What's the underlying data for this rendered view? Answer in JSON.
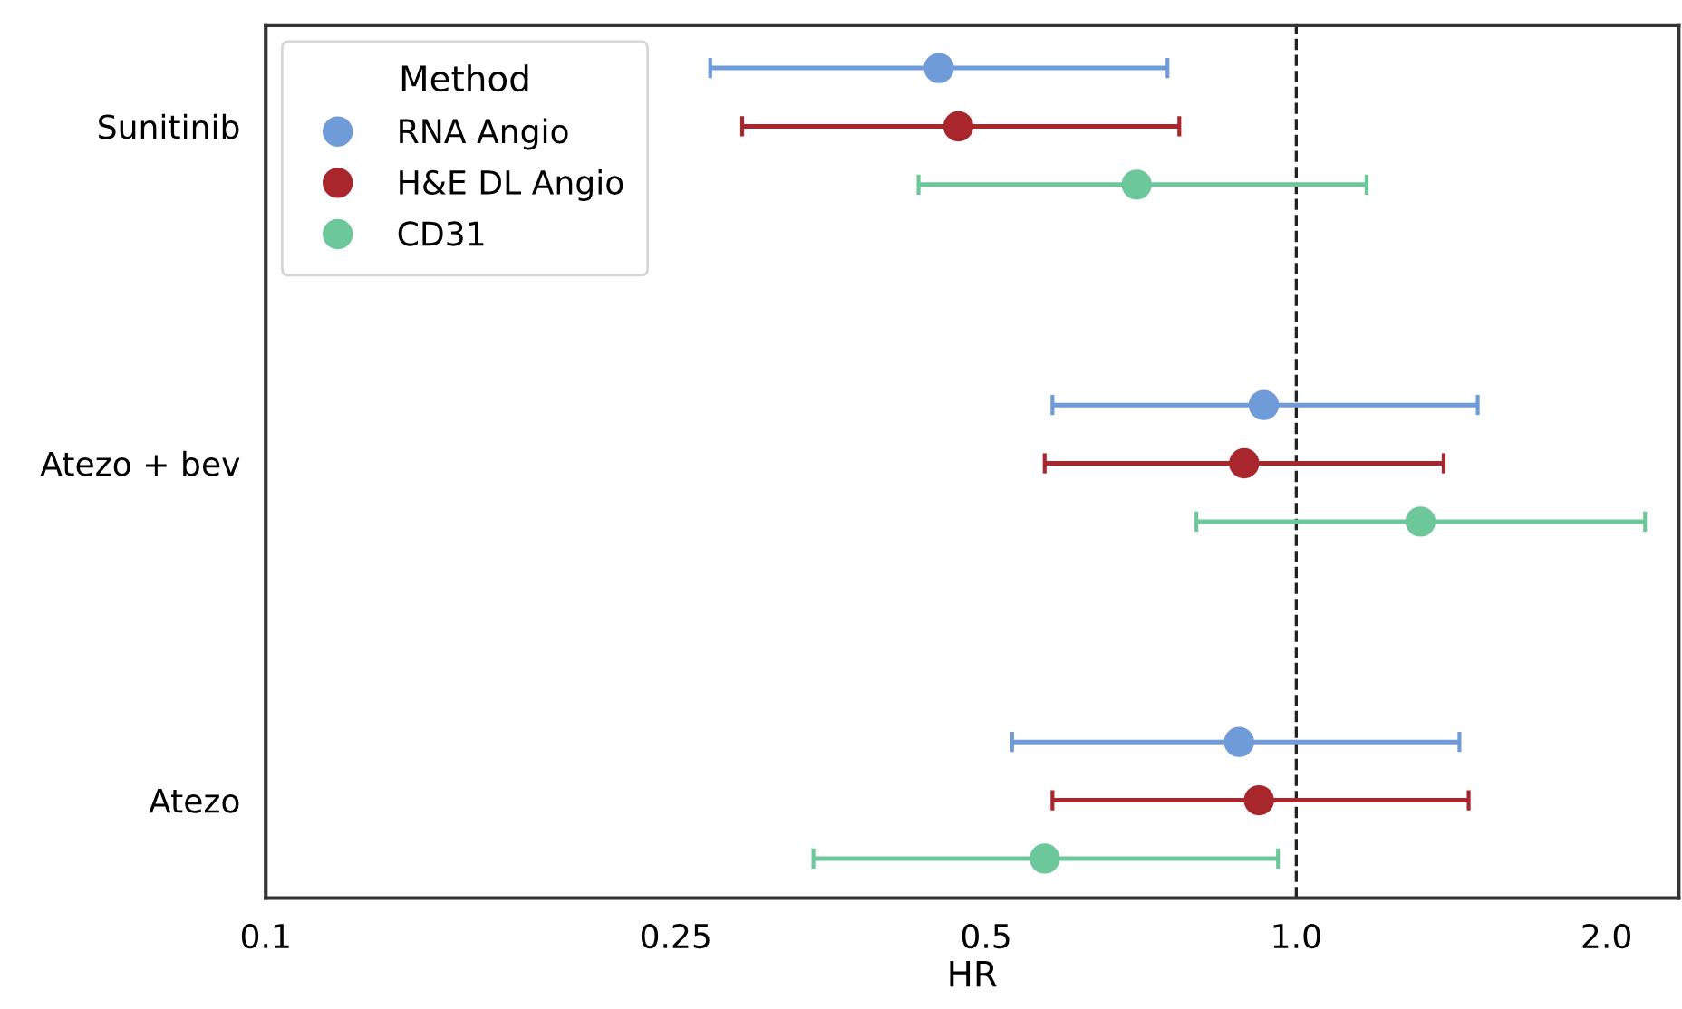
{
  "chart_data": {
    "type": "scatter",
    "orientation": "horizontal",
    "xlabel": "HR",
    "legend_title": "Method",
    "categories": [
      "Sunitinib",
      "Atezo + bev",
      "Atezo"
    ],
    "series": [
      {
        "name": "RNA Angio",
        "color": "#6f9bd8",
        "values": [
          0.45,
          0.93,
          0.88
        ],
        "errors": [
          [
            0.27,
            0.75
          ],
          [
            0.58,
            1.5
          ],
          [
            0.53,
            1.44
          ]
        ]
      },
      {
        "name": "H&E DL Angio",
        "color": "#a8262c",
        "values": [
          0.47,
          0.89,
          0.92
        ],
        "errors": [
          [
            0.29,
            0.77
          ],
          [
            0.57,
            1.39
          ],
          [
            0.58,
            1.47
          ]
        ]
      },
      {
        "name": "CD31",
        "color": "#6cc89a",
        "values": [
          0.7,
          1.32,
          0.57
        ],
        "errors": [
          [
            0.43,
            1.17
          ],
          [
            0.8,
            2.18
          ],
          [
            0.34,
            0.96
          ]
        ]
      }
    ],
    "log": "x",
    "xlim": [
      0.1,
      2.35
    ],
    "xticks": [
      0.1,
      0.25,
      0.5,
      {
        "value": 1,
        "label": "1.0"
      },
      {
        "value": 2,
        "label": "2.0"
      }
    ],
    "ref_lines": [
      {
        "axis": "x",
        "value": 1.0,
        "color": "#222222",
        "line_style": "dashed"
      }
    ],
    "grid": false,
    "legend": "top left",
    "marker": "circle"
  }
}
